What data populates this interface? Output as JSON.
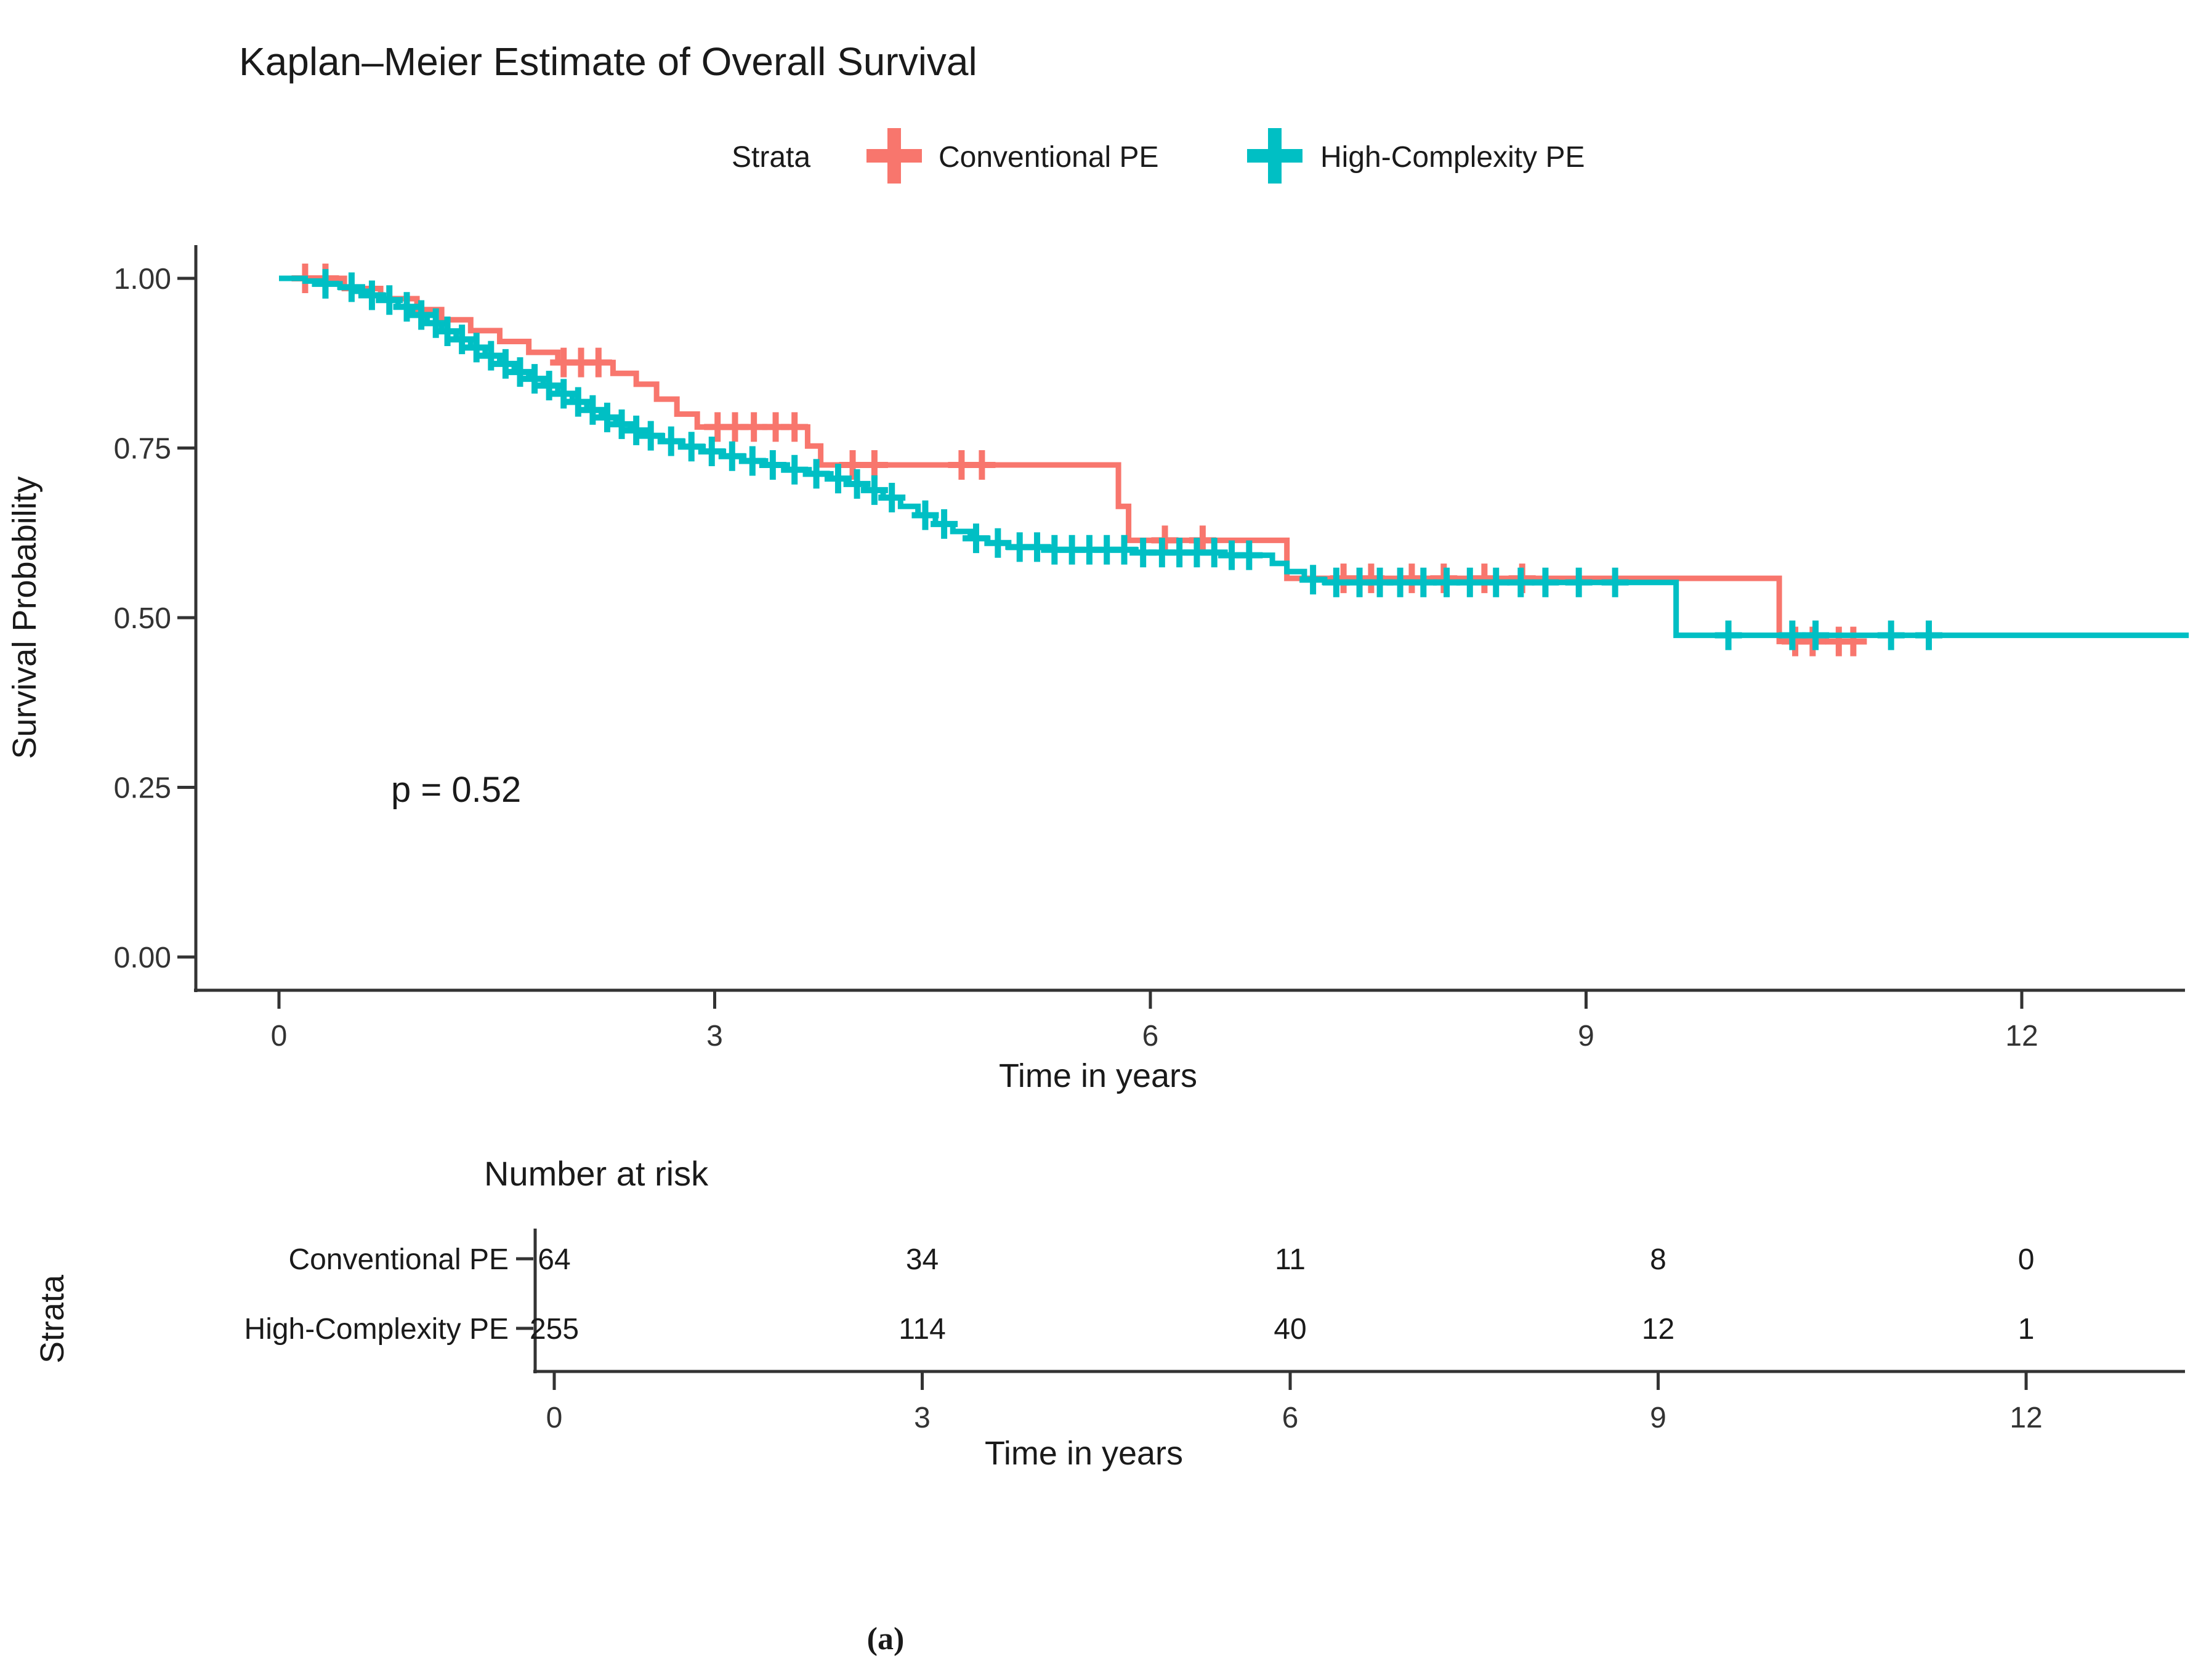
{
  "caption": "(a)",
  "chart_data": {
    "type": "line",
    "subtype": "kaplan-meier-step",
    "title": "Kaplan–Meier Estimate of Overall Survival",
    "xlabel": "Time in years",
    "ylabel": "Survival Probability",
    "pvalue": "p = 0.52",
    "xlim": [
      0,
      13.2
    ],
    "ylim": [
      0,
      1.0
    ],
    "xticks": [
      "0",
      "3",
      "6",
      "9",
      "12"
    ],
    "xtick_values": [
      0,
      3,
      6,
      9,
      12
    ],
    "ytick_labels": [
      "1.00",
      "0.75",
      "0.50",
      "0.25",
      "0.00"
    ],
    "ytick_values": [
      1.0,
      0.75,
      0.5,
      0.25,
      0.0
    ],
    "grid": "off",
    "legend": {
      "label": "Strata",
      "position": "top",
      "entries": [
        "Conventional PE",
        "High-Complexity PE"
      ]
    },
    "colors": {
      "conventional": "#F8766D",
      "high_complexity": "#00BFC4",
      "axis": "#333333"
    },
    "series": [
      {
        "name": "Conventional PE",
        "color": "#F8766D",
        "end_time": 10.92,
        "steps": [
          [
            0,
            1.0
          ],
          [
            0.45,
            0.985
          ],
          [
            0.7,
            0.97
          ],
          [
            0.95,
            0.954
          ],
          [
            1.12,
            0.939
          ],
          [
            1.32,
            0.923
          ],
          [
            1.52,
            0.907
          ],
          [
            1.72,
            0.891
          ],
          [
            1.92,
            0.876
          ],
          [
            2.3,
            0.86
          ],
          [
            2.46,
            0.844
          ],
          [
            2.6,
            0.822
          ],
          [
            2.74,
            0.8
          ],
          [
            2.88,
            0.781
          ],
          [
            3.64,
            0.753
          ],
          [
            3.73,
            0.725
          ],
          [
            5.78,
            0.664
          ],
          [
            5.85,
            0.614
          ],
          [
            6.94,
            0.558
          ],
          [
            10.33,
            0.465
          ]
        ],
        "censor_times": [
          0.18,
          0.32,
          1.96,
          2.08,
          2.2,
          3.02,
          3.14,
          3.27,
          3.42,
          3.55,
          3.95,
          4.1,
          4.7,
          4.84,
          6.1,
          6.36,
          7.33,
          7.52,
          7.8,
          8.02,
          8.3,
          8.56,
          10.44,
          10.56,
          10.74,
          10.84
        ]
      },
      {
        "name": "High-Complexity PE",
        "color": "#00BFC4",
        "end_time": 13.15,
        "steps": [
          [
            0,
            1.0
          ],
          [
            0.18,
            0.996
          ],
          [
            0.3,
            0.992
          ],
          [
            0.42,
            0.987
          ],
          [
            0.52,
            0.981
          ],
          [
            0.62,
            0.975
          ],
          [
            0.72,
            0.968
          ],
          [
            0.82,
            0.958
          ],
          [
            0.92,
            0.946
          ],
          [
            1.02,
            0.934
          ],
          [
            1.12,
            0.922
          ],
          [
            1.22,
            0.91
          ],
          [
            1.32,
            0.898
          ],
          [
            1.42,
            0.886
          ],
          [
            1.52,
            0.874
          ],
          [
            1.62,
            0.862
          ],
          [
            1.72,
            0.852
          ],
          [
            1.82,
            0.842
          ],
          [
            1.92,
            0.83
          ],
          [
            2.02,
            0.818
          ],
          [
            2.12,
            0.806
          ],
          [
            2.22,
            0.795
          ],
          [
            2.32,
            0.785
          ],
          [
            2.42,
            0.776
          ],
          [
            2.52,
            0.768
          ],
          [
            2.64,
            0.76
          ],
          [
            2.78,
            0.752
          ],
          [
            2.92,
            0.745
          ],
          [
            3.06,
            0.738
          ],
          [
            3.2,
            0.731
          ],
          [
            3.35,
            0.725
          ],
          [
            3.5,
            0.718
          ],
          [
            3.65,
            0.712
          ],
          [
            3.8,
            0.705
          ],
          [
            3.92,
            0.697
          ],
          [
            4.04,
            0.688
          ],
          [
            4.16,
            0.677
          ],
          [
            4.28,
            0.664
          ],
          [
            4.4,
            0.651
          ],
          [
            4.52,
            0.638
          ],
          [
            4.64,
            0.627
          ],
          [
            4.76,
            0.617
          ],
          [
            4.88,
            0.61
          ],
          [
            5.02,
            0.604
          ],
          [
            5.3,
            0.6
          ],
          [
            5.9,
            0.596
          ],
          [
            6.5,
            0.592
          ],
          [
            6.84,
            0.58
          ],
          [
            6.94,
            0.568
          ],
          [
            7.06,
            0.556
          ],
          [
            7.2,
            0.552
          ],
          [
            9.62,
            0.474
          ]
        ],
        "censor_times": [
          0.32,
          0.5,
          0.64,
          0.76,
          0.88,
          0.98,
          1.08,
          1.16,
          1.26,
          1.36,
          1.46,
          1.56,
          1.66,
          1.76,
          1.86,
          1.96,
          2.06,
          2.16,
          2.26,
          2.36,
          2.46,
          2.56,
          2.7,
          2.84,
          2.98,
          3.12,
          3.26,
          3.4,
          3.55,
          3.7,
          3.85,
          3.98,
          4.1,
          4.22,
          4.45,
          4.58,
          4.8,
          4.95,
          5.1,
          5.22,
          5.34,
          5.46,
          5.58,
          5.7,
          5.82,
          5.95,
          6.08,
          6.2,
          6.32,
          6.44,
          6.56,
          6.68,
          7.12,
          7.28,
          7.44,
          7.58,
          7.72,
          7.88,
          8.04,
          8.2,
          8.38,
          8.55,
          8.72,
          8.95,
          9.2,
          9.98,
          10.42,
          10.58,
          11.1,
          11.36
        ]
      }
    ],
    "risk_table": {
      "title": "Number at risk",
      "axis_label": "Strata",
      "time_label": "Time in years",
      "times": [
        0,
        3,
        6,
        9,
        12
      ],
      "rows": [
        {
          "name": "Conventional PE",
          "color": "#F8766D",
          "values": [
            "64",
            "34",
            "11",
            "8",
            "0"
          ]
        },
        {
          "name": "High-Complexity PE",
          "color": "#00BFC4",
          "values": [
            "255",
            "114",
            "40",
            "12",
            "1"
          ]
        }
      ]
    }
  }
}
